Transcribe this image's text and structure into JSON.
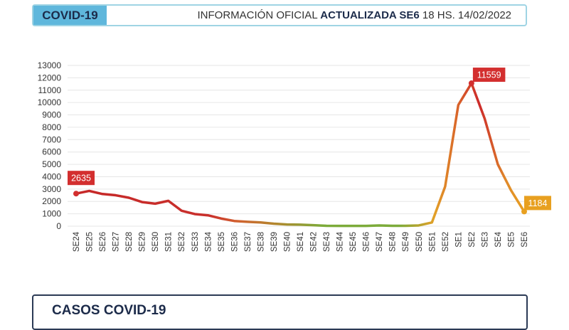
{
  "header": {
    "tag": "COVID-19",
    "info_prefix": "INFORMACIÓN OFICIAL ",
    "info_bold": "ACTUALIZADA SE6",
    "info_suffix": " 18 HS. 14/02/2022"
  },
  "bottom": {
    "title": "CASOS COVID-19"
  },
  "chart_data": {
    "type": "line",
    "title": "",
    "xlabel": "",
    "ylabel": "",
    "ylim": [
      0,
      13000
    ],
    "yticks": [
      0,
      1000,
      2000,
      3000,
      4000,
      5000,
      6000,
      7000,
      8000,
      9000,
      10000,
      11000,
      12000,
      13000
    ],
    "grid": true,
    "categories": [
      "SE24",
      "SE25",
      "SE26",
      "SE27",
      "SE28",
      "SE29",
      "SE30",
      "SE31",
      "SE32",
      "SE33",
      "SE34",
      "SE35",
      "SE36",
      "SE37",
      "SE38",
      "SE39",
      "SE40",
      "SE41",
      "SE42",
      "SE43",
      "SE44",
      "SE45",
      "SE46",
      "SE47",
      "SE48",
      "SE49",
      "SE50",
      "SE51",
      "SE52",
      "SE1",
      "SE2",
      "SE3",
      "SE4",
      "SE5",
      "SE6"
    ],
    "values": [
      2635,
      2850,
      2600,
      2500,
      2300,
      1950,
      1820,
      2050,
      1250,
      980,
      880,
      620,
      420,
      350,
      300,
      200,
      140,
      120,
      80,
      30,
      20,
      20,
      20,
      60,
      30,
      30,
      60,
      300,
      3200,
      9800,
      11559,
      8700,
      5000,
      2900,
      1184
    ],
    "annotations": [
      {
        "category": "SE24",
        "label": "2635",
        "color": "#d32f2f"
      },
      {
        "category": "SE2",
        "label": "11559",
        "color": "#d32f2f"
      },
      {
        "category": "SE6",
        "label": "1184",
        "color": "#e8a020"
      }
    ]
  }
}
